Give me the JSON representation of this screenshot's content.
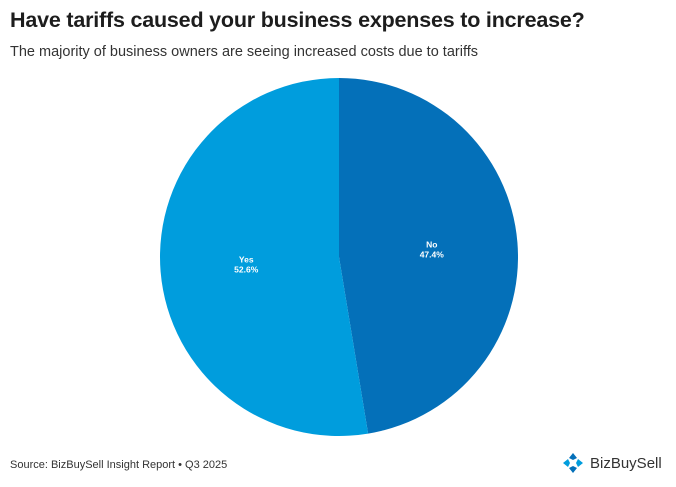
{
  "header": {
    "title": "Have tariffs caused your business expenses to increase?",
    "subtitle": "The majority of business owners are seeing increased costs due to tariffs"
  },
  "footer": {
    "source": "Source: BizBuySell Insight Report • Q3 2025",
    "brand_name": "BizBuySell",
    "brand_icon": "bizbuysell-logo-icon"
  },
  "chart_data": {
    "type": "pie",
    "title": "Have tariffs caused your business expenses to increase?",
    "subtitle": "The majority of business owners are seeing increased costs due to tariffs",
    "slices": [
      {
        "label": "No",
        "value": 47.4,
        "display": "47.4%",
        "color": "#0470b9"
      },
      {
        "label": "Yes",
        "value": 52.6,
        "display": "52.6%",
        "color": "#009ddd"
      }
    ],
    "start_angle_deg": 0,
    "direction": "clockwise"
  }
}
